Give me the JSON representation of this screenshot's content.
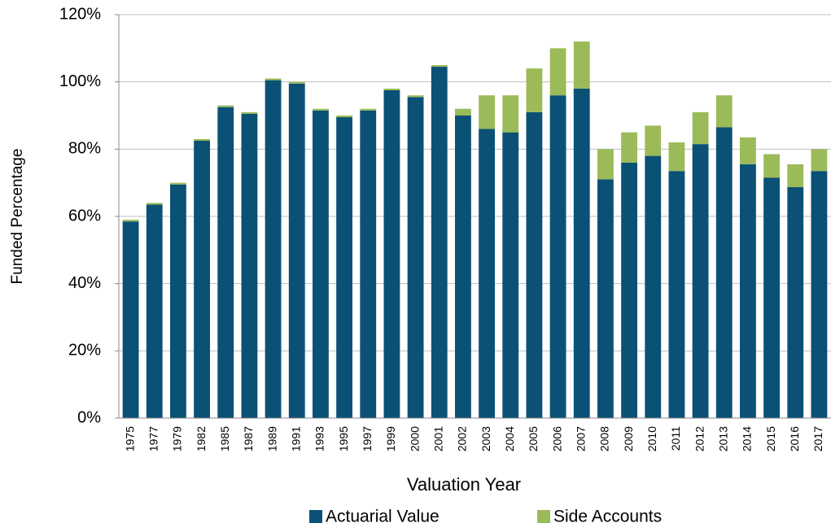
{
  "chart_data": {
    "type": "stacked-bar",
    "y_label": "Funded Percentage",
    "x_label": "Valuation Year",
    "categories": [
      "1975",
      "1977",
      "1979",
      "1982",
      "1985",
      "1987",
      "1989",
      "1991",
      "1993",
      "1995",
      "1997",
      "1999",
      "2000",
      "2001",
      "2002",
      "2003",
      "2004",
      "2005",
      "2006",
      "2007",
      "2008",
      "2009",
      "2010",
      "2011",
      "2012",
      "2013",
      "2014",
      "2015",
      "2016",
      "2017"
    ],
    "series": [
      {
        "name": "Actuarial Value",
        "color": "#0b5176",
        "values": [
          58.5,
          63.5,
          69.5,
          82.5,
          92.5,
          90.5,
          100.5,
          99.5,
          91.5,
          89.5,
          91.5,
          97.5,
          95.5,
          104.5,
          90,
          86,
          85,
          91,
          96,
          98,
          71,
          76,
          78,
          73.5,
          81.5,
          86.5,
          75.5,
          71.5,
          68.7,
          73.5
        ]
      },
      {
        "name": "Side Accounts",
        "color": "#9bbb59",
        "values": [
          0.5,
          0.5,
          0.5,
          0.5,
          0.5,
          0.5,
          0.5,
          0.5,
          0.5,
          0.5,
          0.5,
          0.5,
          0.5,
          0.5,
          2,
          10,
          11,
          13,
          14,
          14,
          9,
          9,
          9,
          8.5,
          9.5,
          9.5,
          8,
          7,
          6.8,
          6.5
        ]
      }
    ],
    "ylim": [
      0,
      120
    ],
    "yticks": [
      {
        "value": 0,
        "label": "0%"
      },
      {
        "value": 20,
        "label": "20%"
      },
      {
        "value": 40,
        "label": "40%"
      },
      {
        "value": 60,
        "label": "60%"
      },
      {
        "value": 80,
        "label": "80%"
      },
      {
        "value": 100,
        "label": "100%"
      },
      {
        "value": 120,
        "label": "120%"
      }
    ],
    "grid": true,
    "legend": "bottom"
  }
}
